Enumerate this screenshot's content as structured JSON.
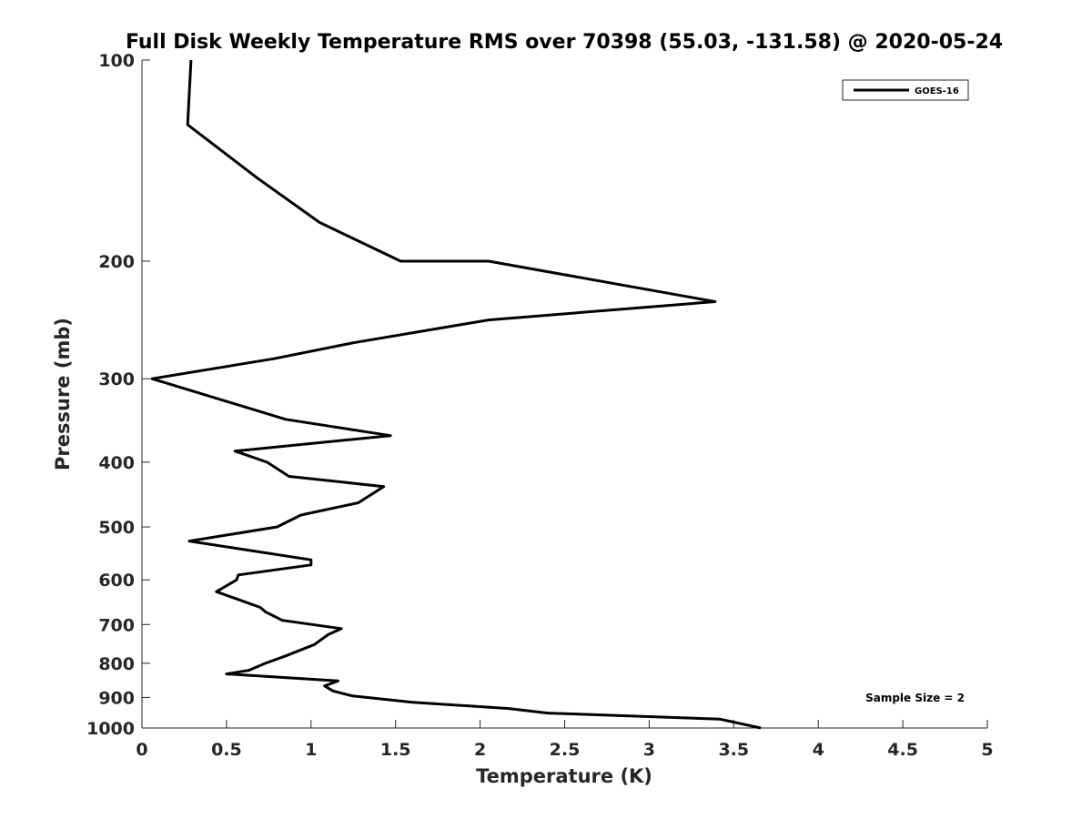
{
  "chart_data": {
    "type": "line",
    "title": "Full Disk Weekly Temperature RMS over 70398 (55.03, -131.58) @ 2020-05-24",
    "xlabel": "Temperature (K)",
    "ylabel": "Pressure (mb)",
    "xlim": [
      0,
      5
    ],
    "ylim": [
      1000,
      100
    ],
    "y_scale": "log",
    "x_ticks": [
      "0",
      "0.5",
      "1",
      "1.5",
      "2",
      "2.5",
      "3",
      "3.5",
      "4",
      "4.5",
      "5"
    ],
    "y_ticks": [
      "100",
      "200",
      "300",
      "400",
      "500",
      "600",
      "700",
      "800",
      "900",
      "1000"
    ],
    "grid": false,
    "legend": {
      "location": "top-right",
      "entries": [
        "GOES-16"
      ]
    },
    "annotation": "Sample Size = 2",
    "series": [
      {
        "name": "GOES-16",
        "color": "#000000",
        "points": [
          [
            0.29,
            100
          ],
          [
            0.27,
            125
          ],
          [
            0.68,
            150
          ],
          [
            1.05,
            175
          ],
          [
            1.53,
            200
          ],
          [
            2.05,
            200
          ],
          [
            3.39,
            230
          ],
          [
            2.05,
            245
          ],
          [
            1.25,
            265
          ],
          [
            0.78,
            280
          ],
          [
            0.06,
            300
          ],
          [
            0.85,
            345
          ],
          [
            1.47,
            365
          ],
          [
            0.55,
            385
          ],
          [
            0.74,
            400
          ],
          [
            0.87,
            420
          ],
          [
            1.43,
            435
          ],
          [
            1.28,
            460
          ],
          [
            0.94,
            480
          ],
          [
            0.8,
            500
          ],
          [
            0.28,
            525
          ],
          [
            1.0,
            560
          ],
          [
            1.0,
            570
          ],
          [
            0.57,
            590
          ],
          [
            0.56,
            600
          ],
          [
            0.44,
            625
          ],
          [
            0.7,
            660
          ],
          [
            0.73,
            670
          ],
          [
            0.83,
            690
          ],
          [
            1.18,
            710
          ],
          [
            1.1,
            725
          ],
          [
            1.02,
            750
          ],
          [
            0.85,
            780
          ],
          [
            0.73,
            800
          ],
          [
            0.63,
            820
          ],
          [
            0.5,
            830
          ],
          [
            1.16,
            850
          ],
          [
            1.08,
            865
          ],
          [
            1.13,
            880
          ],
          [
            1.24,
            895
          ],
          [
            1.6,
            915
          ],
          [
            2.17,
            935
          ],
          [
            2.4,
            950
          ],
          [
            3.42,
            970
          ],
          [
            3.66,
            1000
          ]
        ]
      }
    ]
  }
}
